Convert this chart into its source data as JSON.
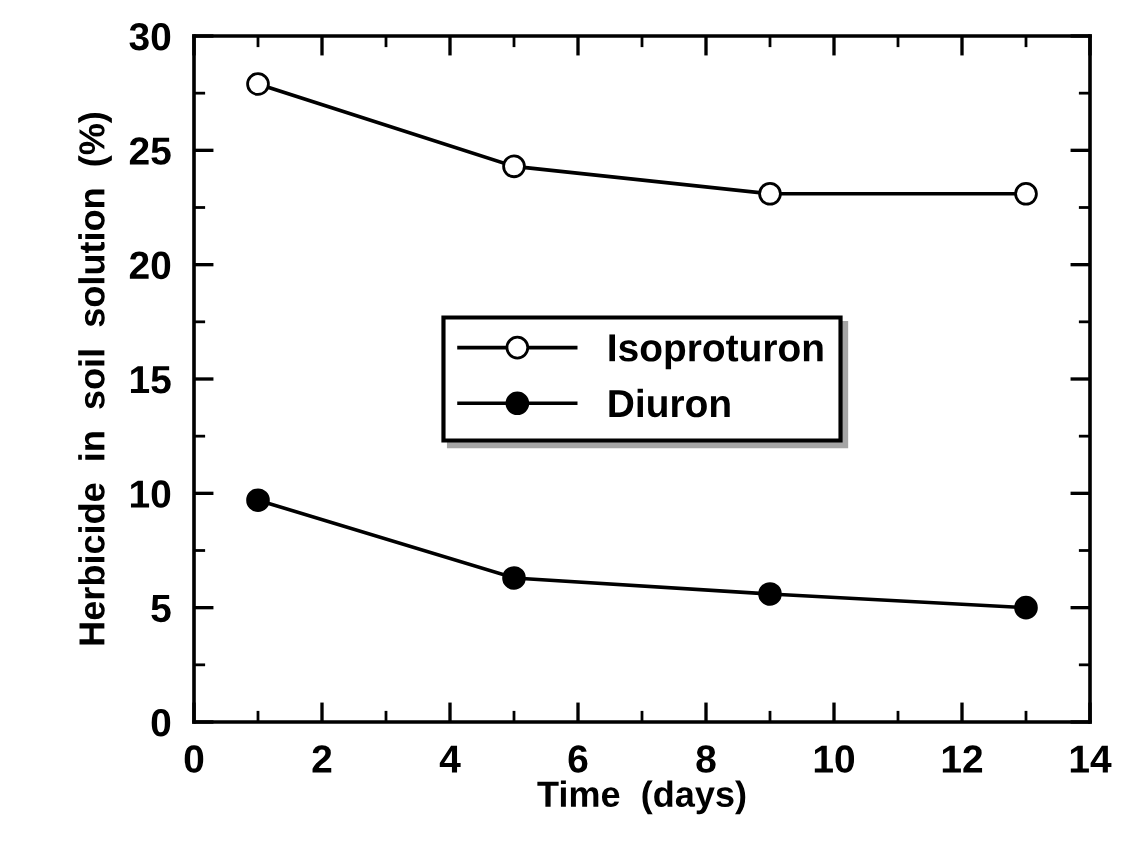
{
  "chart_data": {
    "type": "line",
    "xlabel": "Time  (days)",
    "ylabel": "Herbicide  in  soil  solution  (%)",
    "x": [
      1,
      5,
      9,
      13
    ],
    "series": [
      {
        "name": "Isoproturon",
        "color": "#000000",
        "values": [
          27.9,
          24.3,
          23.1,
          23.1
        ]
      },
      {
        "name": "Diuron",
        "color": "#000000",
        "values": [
          9.7,
          6.3,
          5.6,
          5.0
        ]
      }
    ],
    "xlim": [
      0,
      14
    ],
    "xticks": [
      0,
      2,
      4,
      6,
      8,
      10,
      12,
      14
    ],
    "ylim": [
      0,
      30
    ],
    "yticks": [
      0,
      5,
      10,
      15,
      20,
      25,
      30
    ],
    "marker": "circle",
    "line_style": "solid",
    "grid": false,
    "legend": "center"
  }
}
